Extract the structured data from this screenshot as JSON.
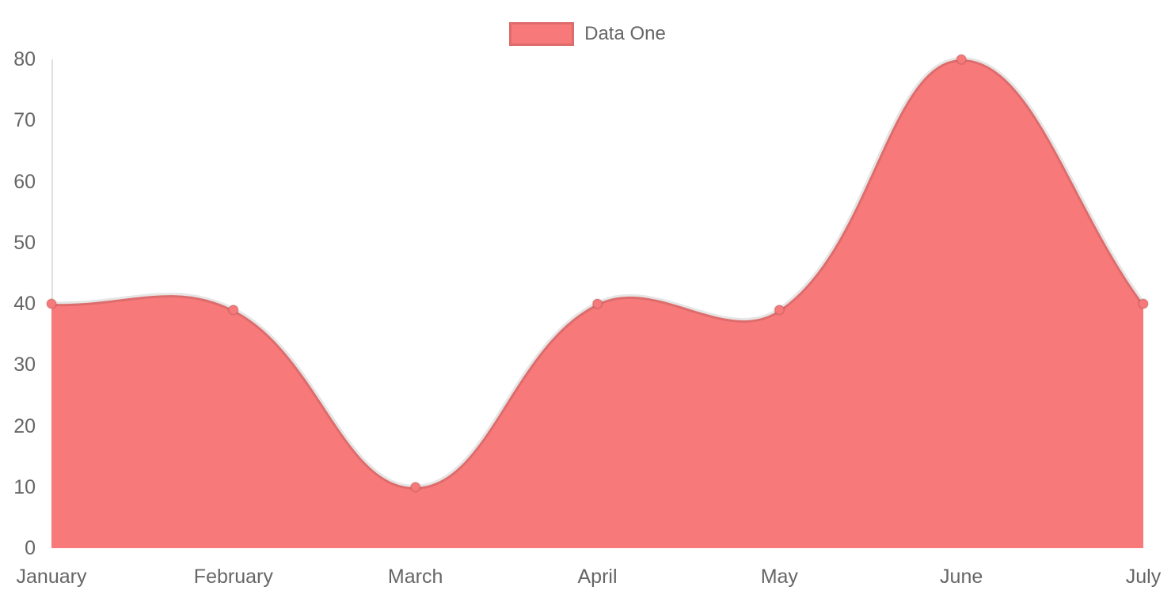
{
  "chart_data": {
    "type": "area",
    "title": "",
    "categories": [
      "January",
      "February",
      "March",
      "April",
      "May",
      "June",
      "July"
    ],
    "series": [
      {
        "name": "Data One",
        "values": [
          40,
          39,
          10,
          40,
          39,
          80,
          40
        ]
      }
    ],
    "xlabel": "",
    "ylabel": "",
    "ylim": [
      0,
      80
    ],
    "yticks": [
      0,
      10,
      20,
      30,
      40,
      50,
      60,
      70,
      80
    ],
    "grid": false,
    "legend_position": "top",
    "line_tension": 0.4,
    "colors": {
      "fill": "#f87979",
      "line": "rgba(0,0,0,0.1)",
      "point_fill": "#f87979",
      "point_border": "rgba(0,0,0,0.1)",
      "axis_line": "rgba(0,0,0,0.12)",
      "tick_text": "#666666",
      "legend_text": "#666666",
      "background": "#ffffff"
    }
  }
}
